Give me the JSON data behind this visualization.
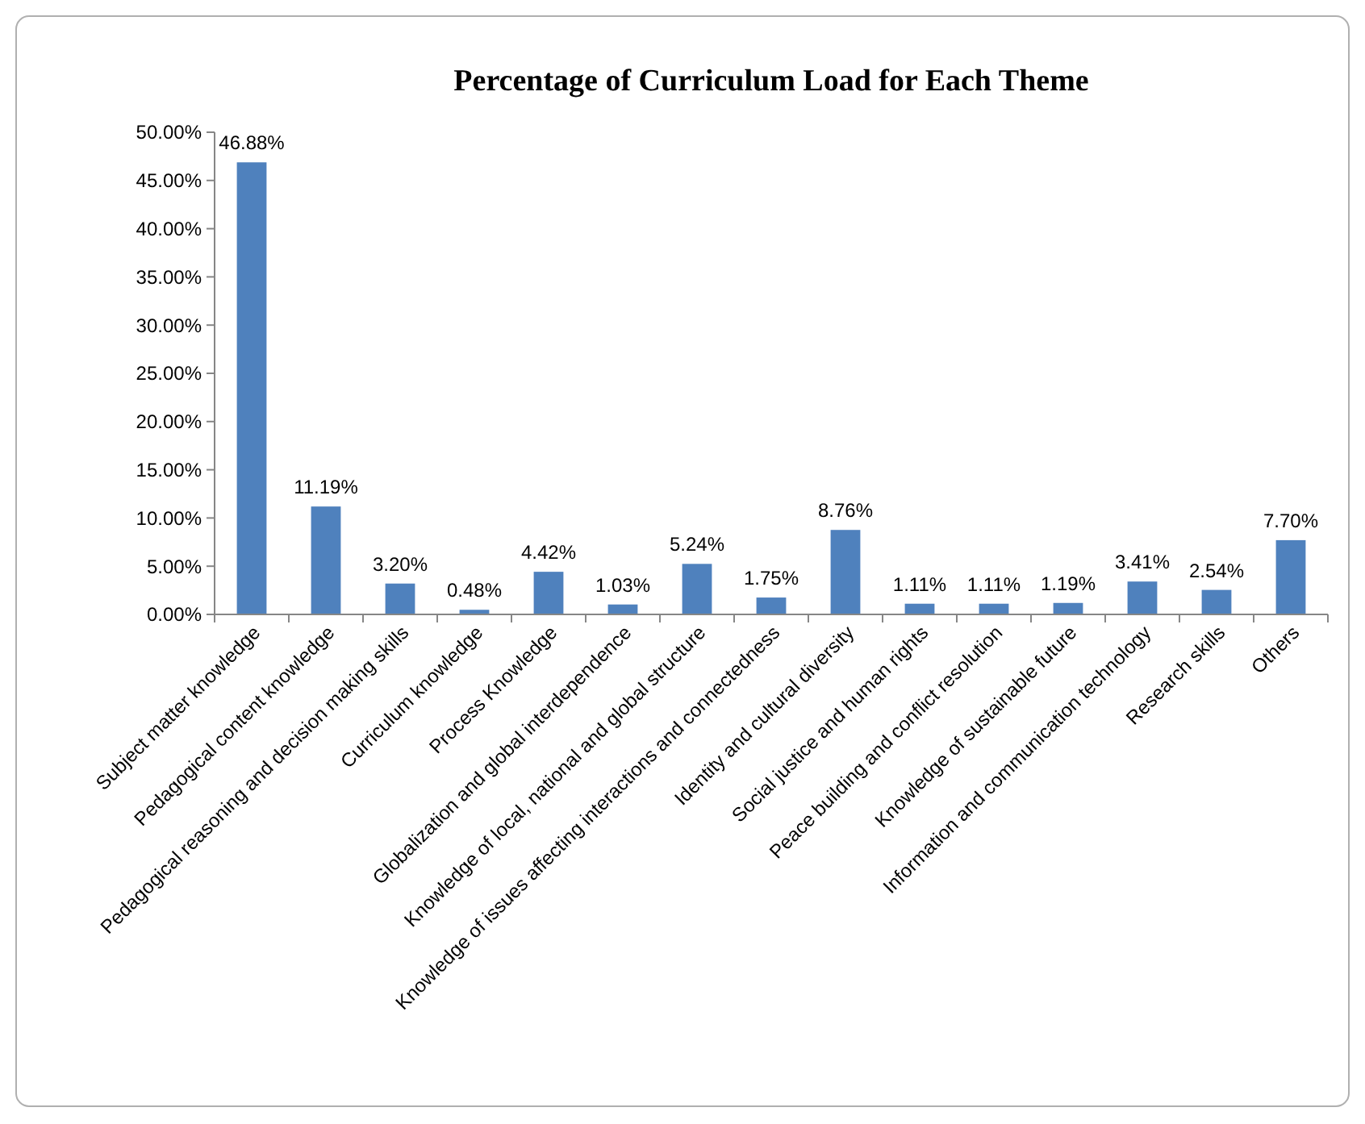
{
  "chart_data": {
    "type": "bar",
    "title": "Percentage of Curriculum Load for Each Theme",
    "categories": [
      "Subject matter knowledge",
      "Pedagogical content knowledge",
      "Pedagogical reasoning and decision making skills",
      "Curriculum knowledge",
      "Process Knowledge",
      "Globalization and global interdependence",
      "Knowledge of local, national and global structure",
      "Knowledge of issues affecting interactions and connectedness",
      "Identity and cultural diversity",
      "Social justice and human rights",
      "Peace building and conflict resolution",
      "Knowledge of sustainable future",
      "Information and communication technology",
      "Research skills",
      "Others"
    ],
    "values": [
      46.88,
      11.19,
      3.2,
      0.48,
      4.42,
      1.03,
      5.24,
      1.75,
      8.76,
      1.11,
      1.11,
      1.19,
      3.41,
      2.54,
      7.7
    ],
    "value_labels": [
      "46.88%",
      "11.19%",
      "3.20%",
      "0.48%",
      "4.42%",
      "1.03%",
      "5.24%",
      "1.75%",
      "8.76%",
      "1.11%",
      "1.11%",
      "1.19%",
      "3.41%",
      "2.54%",
      "7.70%"
    ],
    "color": "#4f81bd",
    "ylim": [
      0,
      50
    ],
    "yticks": [
      {
        "value": 0,
        "label": "0.00%"
      },
      {
        "value": 5,
        "label": "5.00%"
      },
      {
        "value": 10,
        "label": "10.00%"
      },
      {
        "value": 15,
        "label": "15.00%"
      },
      {
        "value": 20,
        "label": "20.00%"
      },
      {
        "value": 25,
        "label": "25.00%"
      },
      {
        "value": 30,
        "label": "30.00%"
      },
      {
        "value": 35,
        "label": "35.00%"
      },
      {
        "value": 40,
        "label": "40.00%"
      },
      {
        "value": 45,
        "label": "45.00%"
      },
      {
        "value": 50,
        "label": "50.00%"
      }
    ],
    "grid": false
  }
}
